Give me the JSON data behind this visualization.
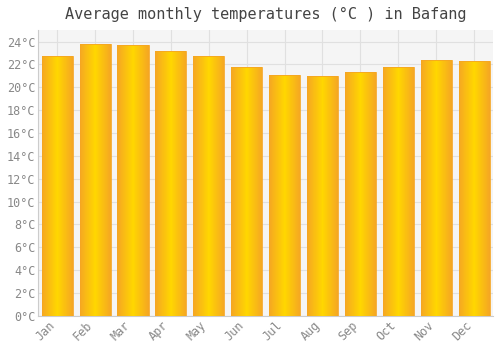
{
  "title": "Average monthly temperatures (°C ) in Bafang",
  "months": [
    "Jan",
    "Feb",
    "Mar",
    "Apr",
    "May",
    "Jun",
    "Jul",
    "Aug",
    "Sep",
    "Oct",
    "Nov",
    "Dec"
  ],
  "values": [
    22.7,
    23.8,
    23.7,
    23.2,
    22.7,
    21.8,
    21.1,
    21.0,
    21.3,
    21.8,
    22.4,
    22.3
  ],
  "bar_color_center": "#FFD700",
  "bar_color_edge": "#F5A623",
  "ylim": [
    0,
    25
  ],
  "ytick_step": 2,
  "background_color": "#ffffff",
  "plot_bg_color": "#f5f5f5",
  "grid_color": "#e0e0e0",
  "title_fontsize": 11,
  "tick_fontsize": 8.5,
  "bar_width": 0.82
}
